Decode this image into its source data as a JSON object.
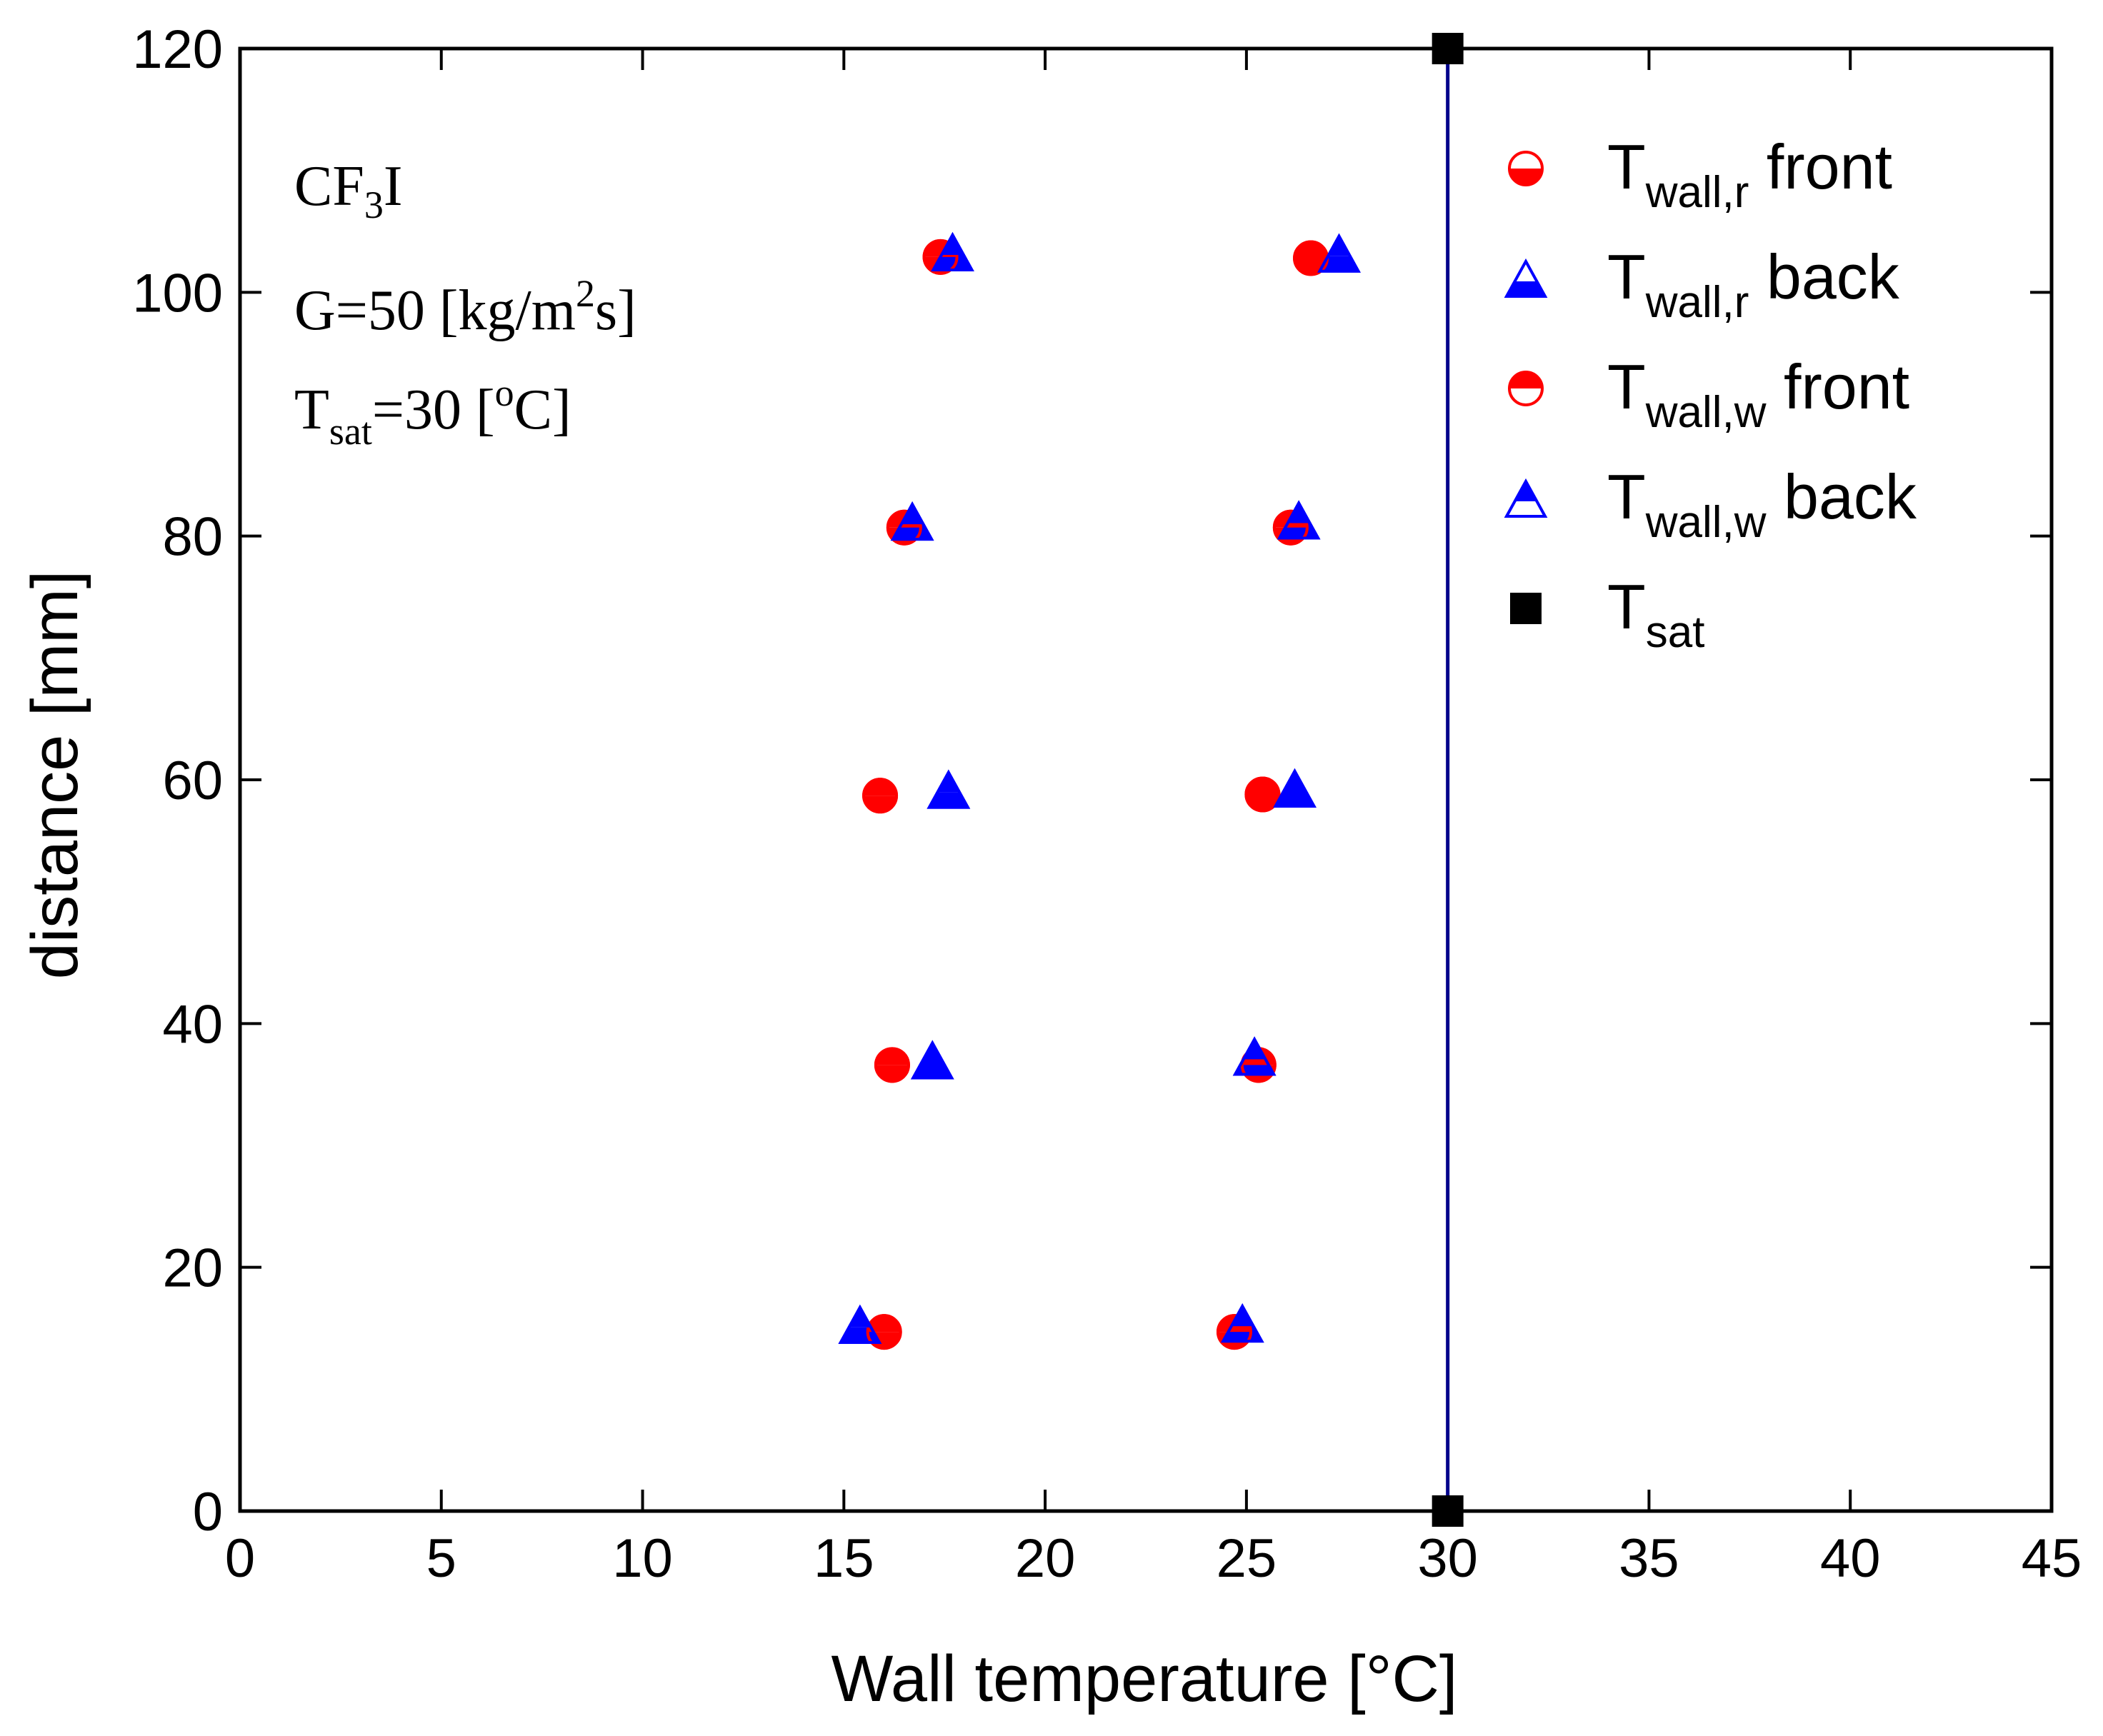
{
  "chart_data": {
    "type": "scatter",
    "xlabel": "Wall temperature [°C]",
    "ylabel": "distance [mm]",
    "xlim": [
      0,
      45
    ],
    "ylim": [
      0,
      120
    ],
    "xticks": [
      0,
      5,
      10,
      15,
      20,
      25,
      30,
      35,
      40,
      45
    ],
    "yticks": [
      0,
      20,
      40,
      60,
      80,
      100,
      120
    ],
    "xtick_labels": [
      "0",
      "5",
      "10",
      "15",
      "20",
      "25",
      "30",
      "35",
      "40",
      "45"
    ],
    "ytick_labels": [
      "0",
      "20",
      "40",
      "60",
      "80",
      "100",
      "120"
    ],
    "grid": false,
    "legend_position": "top-right",
    "annotation": {
      "fluid_base": "CF",
      "fluid_sub": "3",
      "fluid_end": "I",
      "g_pre": "G=50 [kg/m",
      "g_sup": "2",
      "g_post": "s]",
      "t_base": "T",
      "t_sub": "sat",
      "t_mid": "=30 [",
      "t_sup": "o",
      "t_end": "C]"
    },
    "series": [
      {
        "name": "Twall,r front",
        "legend_base": "T",
        "legend_sub": "wall,r",
        "legend_suffix": "front",
        "marker": "circle-bottom-open",
        "color": "#ff0000",
        "points": [
          [
            16.0,
            14.7
          ],
          [
            24.7,
            14.7
          ],
          [
            16.2,
            36.6
          ],
          [
            25.3,
            36.6
          ],
          [
            15.9,
            58.7
          ],
          [
            25.4,
            58.8
          ],
          [
            16.5,
            80.7
          ],
          [
            26.1,
            80.7
          ],
          [
            17.4,
            102.9
          ],
          [
            26.6,
            102.8
          ]
        ]
      },
      {
        "name": "Twall,r back",
        "legend_base": "T",
        "legend_sub": "wall,r",
        "legend_suffix": "back",
        "marker": "triangle-bottom-open",
        "color": "#0000ff",
        "points": [
          [
            15.4,
            15.3
          ],
          [
            24.9,
            15.4
          ],
          [
            17.2,
            37.0
          ],
          [
            25.2,
            37.3
          ],
          [
            17.6,
            59.2
          ],
          [
            26.2,
            59.3
          ],
          [
            16.7,
            81.2
          ],
          [
            26.3,
            81.3
          ],
          [
            17.7,
            103.3
          ],
          [
            27.3,
            103.2
          ]
        ]
      },
      {
        "name": "Twall,w front",
        "legend_base": "T",
        "legend_sub": "wall,w",
        "legend_suffix": "front",
        "marker": "circle-top-open",
        "color": "#ff0000",
        "points": [
          [
            16.0,
            14.7
          ],
          [
            24.7,
            14.7
          ],
          [
            16.2,
            36.6
          ],
          [
            25.3,
            36.6
          ],
          [
            15.9,
            58.7
          ],
          [
            25.4,
            58.8
          ],
          [
            16.5,
            80.7
          ],
          [
            26.1,
            80.7
          ],
          [
            17.4,
            102.9
          ],
          [
            26.6,
            102.8
          ]
        ]
      },
      {
        "name": "Twall,w back",
        "legend_base": "T",
        "legend_sub": "wall,w",
        "legend_suffix": "back",
        "marker": "triangle-top-open",
        "color": "#0000ff",
        "points": [
          [
            15.4,
            15.3
          ],
          [
            24.9,
            15.4
          ],
          [
            17.2,
            37.0
          ],
          [
            25.2,
            37.3
          ],
          [
            17.6,
            59.2
          ],
          [
            26.2,
            59.3
          ],
          [
            16.7,
            81.2
          ],
          [
            26.3,
            81.3
          ],
          [
            17.7,
            103.3
          ],
          [
            27.3,
            103.2
          ]
        ]
      },
      {
        "name": "Tsat",
        "legend_base": "T",
        "legend_sub": "sat",
        "legend_suffix": "",
        "marker": "square",
        "color": "#000000",
        "line_color": "#00008b",
        "points": [
          [
            30,
            0
          ],
          [
            30,
            120
          ]
        ]
      }
    ]
  }
}
